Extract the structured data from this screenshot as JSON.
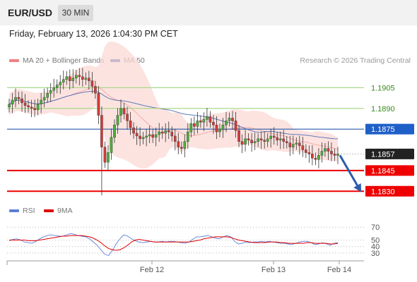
{
  "header": {
    "pair": "EUR/USD",
    "timeframe": "30 MIN"
  },
  "date_line": "Friday, February 13, 2026 1:04:30 PM CET",
  "legend": {
    "bollinger": {
      "label": "MA 20 + Bollinger Bands",
      "color": "#f08080"
    },
    "ma50": {
      "label": "MA 50",
      "color": "#2e5aa8"
    },
    "credit": "Research © 2026 Trading Central"
  },
  "rsi_legend": {
    "rsi": {
      "label": "RSI",
      "color": "#5b7fd6"
    },
    "ma9": {
      "label": "9MA",
      "color": "#e00000"
    }
  },
  "chart_data": [
    {
      "type": "candlestick",
      "x_ticks": [
        "Feb 12",
        "Feb 13",
        "Feb 14"
      ],
      "ylim": [
        1.1823,
        1.192
      ],
      "levels": [
        {
          "value": 1.1905,
          "label": "1.1905",
          "style": "green-line"
        },
        {
          "value": 1.189,
          "label": "1.1890",
          "style": "green-line"
        },
        {
          "value": 1.1875,
          "label": "1.1875",
          "style": "blue-line"
        },
        {
          "value": 1.1845,
          "label": "1.1845",
          "style": "red-line"
        },
        {
          "value": 1.183,
          "label": "1.1830",
          "style": "red-line"
        }
      ],
      "last_price": {
        "value": 1.1857,
        "label": "1.1857"
      },
      "forecast_arrow": {
        "from": 1.1857,
        "to": 1.183
      },
      "closes": [
        1.1893,
        1.1896,
        1.1898,
        1.1897,
        1.1894,
        1.1892,
        1.1891,
        1.189,
        1.1889,
        1.1893,
        1.1896,
        1.1898,
        1.1901,
        1.1903,
        1.1905,
        1.1907,
        1.1909,
        1.1911,
        1.1913,
        1.191,
        1.1912,
        1.1914,
        1.1913,
        1.1911,
        1.1912,
        1.191,
        1.1906,
        1.1901,
        1.1885,
        1.1862,
        1.1851,
        1.1858,
        1.1869,
        1.1878,
        1.1885,
        1.189,
        1.1886,
        1.1881,
        1.1876,
        1.1872,
        1.187,
        1.1868,
        1.1869,
        1.187,
        1.1871,
        1.1869,
        1.1871,
        1.1873,
        1.1872,
        1.1874,
        1.1873,
        1.187,
        1.1866,
        1.1862,
        1.1861,
        1.1866,
        1.1873,
        1.1879,
        1.1877,
        1.1881,
        1.188,
        1.1882,
        1.1884,
        1.188,
        1.1878,
        1.1873,
        1.1875,
        1.1878,
        1.1881,
        1.1883,
        1.1881,
        1.1874,
        1.1866,
        1.1864,
        1.1868,
        1.1867,
        1.1865,
        1.1866,
        1.1868,
        1.1867,
        1.1866,
        1.1868,
        1.187,
        1.1869,
        1.1867,
        1.1868,
        1.1866,
        1.1865,
        1.1862,
        1.1864,
        1.1865,
        1.1863,
        1.186,
        1.1858,
        1.1857,
        1.1854,
        1.1853,
        1.1856,
        1.1859,
        1.1861,
        1.1859,
        1.1857,
        1.1856,
        1.1857
      ]
    },
    {
      "type": "line",
      "name": "RSI",
      "ylim": [
        20,
        80
      ],
      "y_ticks": [
        70,
        50,
        40,
        30
      ],
      "rsi": [
        49,
        51,
        52,
        50,
        47,
        46,
        45,
        48,
        52,
        55,
        57,
        58,
        57,
        56,
        56,
        58,
        60,
        59,
        57,
        56,
        55,
        52,
        47,
        42,
        35,
        28,
        26,
        34,
        44,
        52,
        58,
        56,
        52,
        49,
        47,
        46,
        47,
        48,
        47,
        47,
        48,
        47,
        48,
        48,
        47,
        46,
        45,
        47,
        51,
        55,
        55,
        56,
        57,
        55,
        53,
        52,
        55,
        57,
        55,
        48,
        44,
        45,
        47,
        46,
        47,
        47,
        48,
        47,
        48,
        47,
        46,
        45,
        45,
        44,
        43,
        45,
        47,
        48,
        48,
        46,
        43,
        44,
        46,
        44,
        42,
        45,
        46
      ],
      "ma9": [
        50,
        50,
        50,
        50,
        50,
        49,
        49,
        49,
        50,
        51,
        52,
        53,
        54,
        55,
        56,
        56,
        57,
        57,
        57,
        57,
        56,
        55,
        53,
        50,
        46,
        41,
        37,
        35,
        34,
        35,
        38,
        42,
        47,
        50,
        51,
        50,
        49,
        48,
        47,
        47,
        47,
        47,
        47,
        47,
        47,
        47,
        47,
        47,
        48,
        49,
        50,
        52,
        53,
        54,
        55,
        55,
        55,
        55,
        54,
        52,
        50,
        49,
        48,
        47,
        46,
        46,
        46,
        46,
        47,
        47,
        47,
        46,
        46,
        45,
        45,
        45,
        45,
        45,
        46,
        46,
        45,
        45,
        45,
        45,
        44,
        44,
        45
      ]
    }
  ]
}
